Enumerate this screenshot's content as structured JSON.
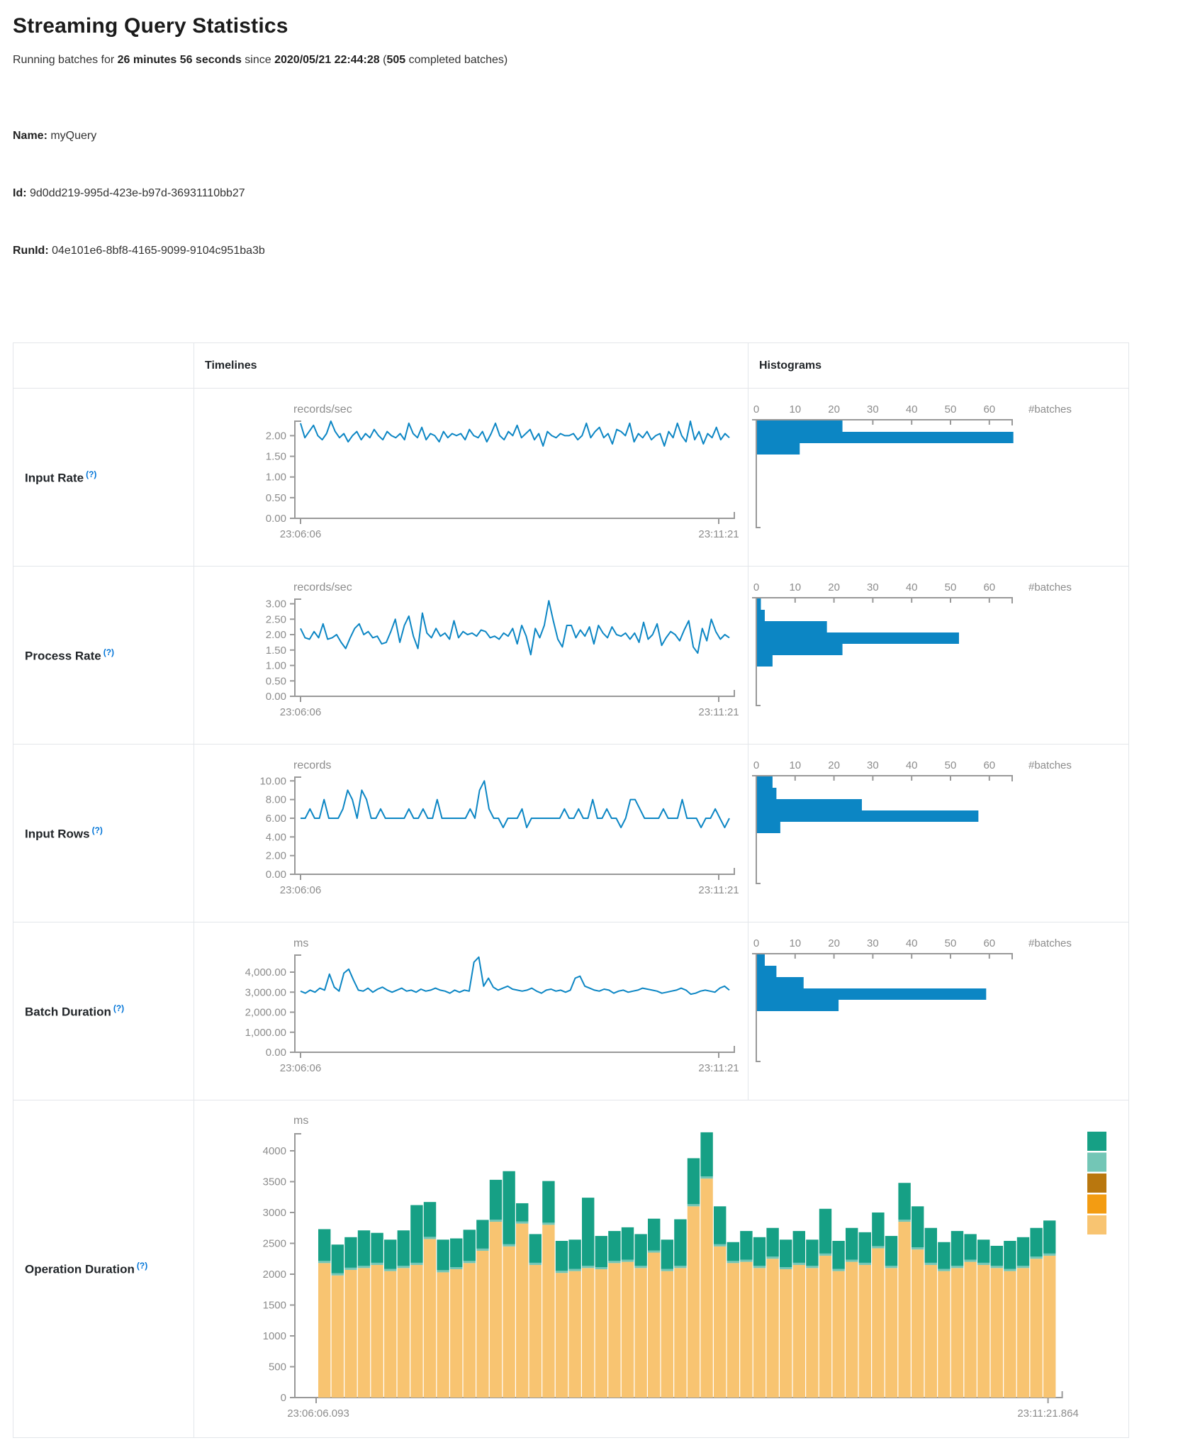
{
  "page": {
    "title": "Streaming Query Statistics",
    "running_prefix": "Running batches for ",
    "running_duration": "26 minutes 56 seconds",
    "since_infix": " since ",
    "start_time": "2020/05/21 22:44:28",
    "batches_open": " (",
    "batches_count": "505",
    "batches_suffix": " completed batches)",
    "name_label": "Name:",
    "name_value": " myQuery",
    "id_label": "Id:",
    "id_value": " 9d0dd219-995d-423e-b97d-36931110bb27",
    "runid_label": "RunId:",
    "runid_value": " 04e101e6-8bf8-4165-9099-9104c951ba3b"
  },
  "table": {
    "col_timelines": "Timelines",
    "col_histograms": "Histograms",
    "hist_axis_label": "#batches",
    "hist_ticks": [
      0,
      10,
      20,
      30,
      40,
      50,
      60
    ]
  },
  "rows": [
    {
      "label": "Input Rate",
      "help": "(?)"
    },
    {
      "label": "Process Rate",
      "help": "(?)"
    },
    {
      "label": "Input Rows",
      "help": "(?)"
    },
    {
      "label": "Batch Duration",
      "help": "(?)"
    },
    {
      "label": "Operation Duration",
      "help": "(?)"
    }
  ],
  "colors": {
    "chart_blue": "#0c86c4",
    "axis_gray": "#999999",
    "label_gray": "#8c8c8c",
    "help_blue": "#0275d8",
    "stack_teal": "#16a085",
    "stack_seafoam": "#73c6b6",
    "stack_ochre": "#b9770e",
    "stack_orange": "#f39c12",
    "stack_tan": "#f8c471"
  },
  "chart_data": [
    {
      "row": "Input Rate",
      "timeline": {
        "type": "line",
        "unit": "records/sec",
        "x_start": "23:06:06",
        "x_end": "23:11:21",
        "ylim": [
          0,
          2.35
        ],
        "yticks": [
          {
            "v": 2.0,
            "t": "2.00"
          },
          {
            "v": 1.5,
            "t": "1.50"
          },
          {
            "v": 1.0,
            "t": "1.00"
          },
          {
            "v": 0.5,
            "t": "0.50"
          },
          {
            "v": 0.0,
            "t": "0.00"
          }
        ],
        "values": [
          2.3,
          1.95,
          2.1,
          2.25,
          2.0,
          1.9,
          2.05,
          2.35,
          2.1,
          1.95,
          2.05,
          1.85,
          2.0,
          2.1,
          1.9,
          2.05,
          1.95,
          2.15,
          2.0,
          1.9,
          2.1,
          2.0,
          1.95,
          2.05,
          1.9,
          2.3,
          2.05,
          1.95,
          2.2,
          1.9,
          2.05,
          2.0,
          1.85,
          2.1,
          1.95,
          2.05,
          2.0,
          2.05,
          1.9,
          2.15,
          2.0,
          1.95,
          2.1,
          1.85,
          2.05,
          2.3,
          2.0,
          1.9,
          2.1,
          2.0,
          2.25,
          1.95,
          2.05,
          2.15,
          1.9,
          2.05,
          1.75,
          2.1,
          2.0,
          1.95,
          2.05,
          2.0,
          2.0,
          2.05,
          1.9,
          2.0,
          2.3,
          1.95,
          2.1,
          2.2,
          1.95,
          2.05,
          1.8,
          2.15,
          2.1,
          2.0,
          2.3,
          1.85,
          2.05,
          1.95,
          2.1,
          1.9,
          2.0,
          2.05,
          1.75,
          2.1,
          1.95,
          2.3,
          2.0,
          1.85,
          2.35,
          1.9,
          2.1,
          1.8,
          2.05,
          1.95,
          2.2,
          1.9,
          2.05,
          1.95
        ]
      },
      "histogram": {
        "type": "bar-horizontal",
        "xlabel": "#batches",
        "ticks": [
          0,
          10,
          20,
          30,
          40,
          50,
          60
        ],
        "values": [
          22,
          66,
          11
        ]
      }
    },
    {
      "row": "Process Rate",
      "timeline": {
        "type": "line",
        "unit": "records/sec",
        "x_start": "23:06:06",
        "x_end": "23:11:21",
        "ylim": [
          0,
          3.15
        ],
        "yticks": [
          {
            "v": 3.0,
            "t": "3.00"
          },
          {
            "v": 2.5,
            "t": "2.50"
          },
          {
            "v": 2.0,
            "t": "2.00"
          },
          {
            "v": 1.5,
            "t": "1.50"
          },
          {
            "v": 1.0,
            "t": "1.00"
          },
          {
            "v": 0.5,
            "t": "0.50"
          },
          {
            "v": 0.0,
            "t": "0.00"
          }
        ],
        "values": [
          2.2,
          1.9,
          1.85,
          2.1,
          1.9,
          2.35,
          1.85,
          1.9,
          2.0,
          1.75,
          1.55,
          1.9,
          2.2,
          2.35,
          2.0,
          2.1,
          1.9,
          1.95,
          1.7,
          1.75,
          2.1,
          2.5,
          1.75,
          2.3,
          2.6,
          1.95,
          1.55,
          2.7,
          2.05,
          1.9,
          2.2,
          1.95,
          2.05,
          1.85,
          2.45,
          1.9,
          2.1,
          2.0,
          2.05,
          1.95,
          2.15,
          2.1,
          1.9,
          1.95,
          1.85,
          2.05,
          1.95,
          2.2,
          1.7,
          2.3,
          1.95,
          1.35,
          2.2,
          1.9,
          2.3,
          3.1,
          2.45,
          1.85,
          1.6,
          2.3,
          2.3,
          1.9,
          2.15,
          1.95,
          2.25,
          1.7,
          2.3,
          2.05,
          1.9,
          2.25,
          2.0,
          1.95,
          2.05,
          1.85,
          2.05,
          1.75,
          2.4,
          1.85,
          2.0,
          2.35,
          1.65,
          1.9,
          2.1,
          2.0,
          1.8,
          2.15,
          2.45,
          1.6,
          1.4,
          2.2,
          1.8,
          2.5,
          2.1,
          1.85,
          2.0,
          1.9
        ]
      },
      "histogram": {
        "type": "bar-horizontal",
        "xlabel": "#batches",
        "ticks": [
          0,
          10,
          20,
          30,
          40,
          50,
          60
        ],
        "values": [
          1,
          2,
          18,
          52,
          22,
          4
        ]
      }
    },
    {
      "row": "Input Rows",
      "timeline": {
        "type": "line",
        "unit": "records",
        "x_start": "23:06:06",
        "x_end": "23:11:21",
        "ylim": [
          0,
          10.4
        ],
        "yticks": [
          {
            "v": 10,
            "t": "10.00"
          },
          {
            "v": 8,
            "t": "8.00"
          },
          {
            "v": 6,
            "t": "6.00"
          },
          {
            "v": 4,
            "t": "4.00"
          },
          {
            "v": 2,
            "t": "2.00"
          },
          {
            "v": 0,
            "t": "0.00"
          }
        ],
        "values": [
          6,
          6,
          7,
          6,
          6,
          8,
          6,
          6,
          6,
          7,
          9,
          8,
          6,
          9,
          8,
          6,
          6,
          7,
          6,
          6,
          6,
          6,
          6,
          7,
          6,
          6,
          7,
          6,
          6,
          8,
          6,
          6,
          6,
          6,
          6,
          6,
          7,
          6,
          9,
          10,
          7,
          6,
          6,
          5,
          6,
          6,
          6,
          7,
          5,
          6,
          6,
          6,
          6,
          6,
          6,
          6,
          7,
          6,
          6,
          7,
          6,
          6,
          8,
          6,
          6,
          7,
          6,
          6,
          5,
          6,
          8,
          8,
          7,
          6,
          6,
          6,
          6,
          7,
          6,
          6,
          6,
          8,
          6,
          6,
          6,
          5,
          6,
          6,
          7,
          6,
          5,
          6
        ]
      },
      "histogram": {
        "type": "bar-horizontal",
        "xlabel": "#batches",
        "ticks": [
          0,
          10,
          20,
          30,
          40,
          50,
          60
        ],
        "values": [
          4,
          5,
          27,
          57,
          6
        ]
      }
    },
    {
      "row": "Batch Duration",
      "timeline": {
        "type": "line",
        "unit": "ms",
        "x_start": "23:06:06",
        "x_end": "23:11:21",
        "ylim": [
          0,
          4850
        ],
        "yticks": [
          {
            "v": 4000,
            "t": "4,000.00"
          },
          {
            "v": 3000,
            "t": "3,000.00"
          },
          {
            "v": 2000,
            "t": "2,000.00"
          },
          {
            "v": 1000,
            "t": "1,000.00"
          },
          {
            "v": 0,
            "t": "0.00"
          }
        ],
        "values": [
          3050,
          2950,
          3100,
          3000,
          3200,
          3100,
          3900,
          3250,
          3050,
          3950,
          4150,
          3600,
          3100,
          3050,
          3200,
          3000,
          3150,
          3250,
          3100,
          3000,
          3100,
          3200,
          3050,
          3100,
          3000,
          3150,
          3050,
          3100,
          3200,
          3100,
          3050,
          2950,
          3100,
          3000,
          3100,
          3050,
          4500,
          4750,
          3300,
          3700,
          3250,
          3100,
          3200,
          3300,
          3150,
          3100,
          3050,
          3100,
          3200,
          3050,
          2950,
          3100,
          3150,
          3050,
          3100,
          3000,
          3100,
          3700,
          3800,
          3300,
          3200,
          3100,
          3050,
          3150,
          3100,
          2950,
          3050,
          3100,
          3000,
          3050,
          3100,
          3200,
          3150,
          3100,
          3050,
          2950,
          3000,
          3050,
          3100,
          3200,
          3100,
          2900,
          2950,
          3050,
          3100,
          3050,
          3000,
          3200,
          3300,
          3100
        ]
      },
      "histogram": {
        "type": "bar-horizontal",
        "xlabel": "#batches",
        "ticks": [
          0,
          10,
          20,
          30,
          40,
          50,
          60
        ],
        "values": [
          2,
          5,
          12,
          59,
          21
        ]
      }
    },
    {
      "row": "Operation Duration",
      "timeline": {
        "type": "stacked-bar",
        "unit": "ms",
        "x_start": "23:06:06.093",
        "x_end": "23:11:21.864",
        "ylim": [
          0,
          4280
        ],
        "yticks": [
          {
            "v": 4000,
            "t": "4000"
          },
          {
            "v": 3500,
            "t": "3500"
          },
          {
            "v": 3000,
            "t": "3000"
          },
          {
            "v": 2500,
            "t": "2500"
          },
          {
            "v": 2000,
            "t": "2000"
          },
          {
            "v": 1500,
            "t": "1500"
          },
          {
            "v": 1000,
            "t": "1000"
          },
          {
            "v": 500,
            "t": "500"
          },
          {
            "v": 0,
            "t": "0"
          }
        ],
        "stack": {
          "base_color": "#f8c471",
          "sliver_color": "#73c6b6",
          "top_color": "#16a085",
          "sliver": 35,
          "base_values": [
            2180,
            1980,
            2070,
            2100,
            2150,
            2050,
            2100,
            2150,
            2570,
            2030,
            2080,
            2180,
            2380,
            2850,
            2450,
            2820,
            2150,
            2800,
            2020,
            2050,
            2100,
            2080,
            2180,
            2200,
            2100,
            2350,
            2050,
            2100,
            3100,
            3550,
            2450,
            2180,
            2200,
            2100,
            2250,
            2080,
            2150,
            2100,
            2300,
            2050,
            2200,
            2150,
            2420,
            2100,
            2850,
            2400,
            2150,
            2050,
            2100,
            2200,
            2150,
            2100,
            2050,
            2100,
            2250,
            2300
          ],
          "totals": [
            2730,
            2480,
            2600,
            2710,
            2670,
            2560,
            2710,
            3120,
            3170,
            2560,
            2580,
            2720,
            2880,
            3530,
            3670,
            3150,
            2650,
            3510,
            2540,
            2560,
            3240,
            2620,
            2700,
            2760,
            2650,
            2900,
            2560,
            2890,
            3880,
            4300,
            3100,
            2520,
            2700,
            2600,
            2750,
            2560,
            2700,
            2560,
            3060,
            2540,
            2750,
            2680,
            3000,
            2620,
            3480,
            3100,
            2750,
            2520,
            2700,
            2650,
            2560,
            2460,
            2540,
            2600,
            2750,
            2870
          ]
        },
        "legend": {
          "swatches": [
            {
              "name": "legend-swatch-teal",
              "color": "#16a085"
            },
            {
              "name": "legend-swatch-seafoam",
              "color": "#73c6b6"
            },
            {
              "name": "legend-swatch-ochre",
              "color": "#b9770e"
            },
            {
              "name": "legend-swatch-orange",
              "color": "#f39c12"
            },
            {
              "name": "legend-swatch-tan",
              "color": "#f8c471"
            }
          ]
        }
      }
    }
  ]
}
